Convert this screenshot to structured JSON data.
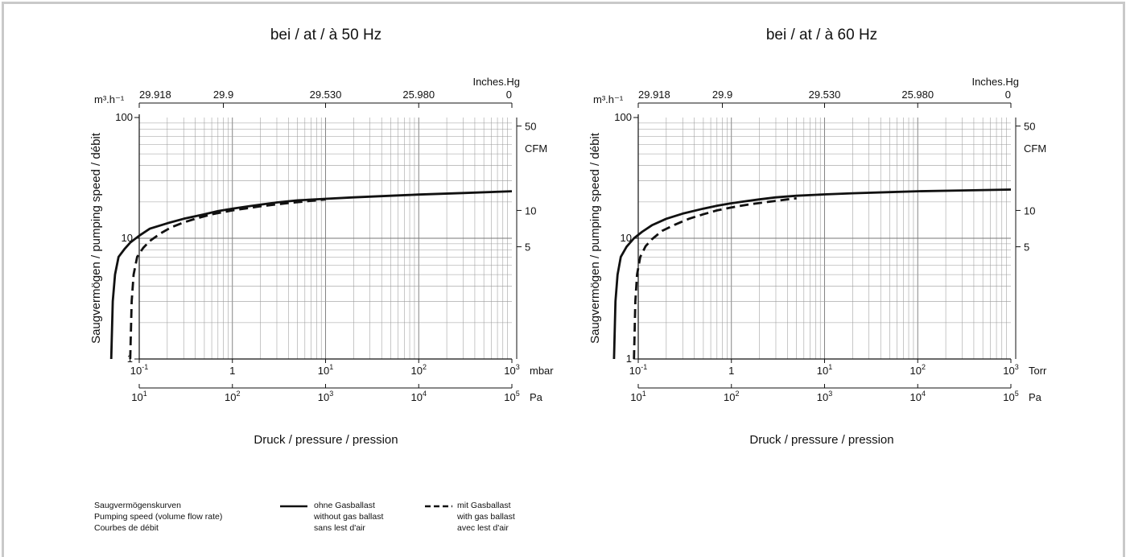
{
  "chart_data": [
    {
      "type": "line",
      "title": "bei / at / à 50 Hz",
      "ylabel": "Saugvermögen / pumping speed / débit",
      "xlabel": "Druck / pressure / pression",
      "x_scale": "log",
      "y_scale": "log",
      "xlim": [
        0.1,
        1000
      ],
      "ylim": [
        1,
        100
      ],
      "grid": true,
      "x_unit": "mbar",
      "y_unit": "m³.h⁻¹",
      "x_ticks": [
        "10",
        "1",
        "10",
        "10",
        "10"
      ],
      "x_tick_exp": [
        "-1",
        "",
        "1",
        "2",
        "3"
      ],
      "pa_ticks": [
        "10",
        "10",
        "10",
        "10",
        "10"
      ],
      "pa_tick_exp": [
        "1",
        "2",
        "3",
        "4",
        "5"
      ],
      "pa_unit": "Pa",
      "y_ticks": [
        "100",
        "10",
        "1"
      ],
      "top_unit": "Inches.Hg",
      "top_ticks": [
        "29.918",
        "29.9",
        "29.530",
        "25.980",
        "0"
      ],
      "right_unit": "CFM",
      "right_ticks": [
        "50",
        "10",
        "5"
      ],
      "series": [
        {
          "style": "solid",
          "x": [
            0.05,
            0.052,
            0.055,
            0.06,
            0.07,
            0.08,
            0.1,
            0.13,
            0.2,
            0.3,
            0.5,
            0.7,
            1,
            1.5,
            2,
            3,
            5,
            10,
            20,
            50,
            100,
            300,
            1000
          ],
          "y": [
            1,
            3,
            5,
            7,
            8.2,
            9.2,
            10.5,
            12,
            13.3,
            14.5,
            15.8,
            16.8,
            17.6,
            18.4,
            19,
            19.8,
            20.6,
            21.2,
            21.8,
            22.5,
            23,
            23.7,
            24.5
          ]
        },
        {
          "style": "dashed",
          "x": [
            0.08,
            0.083,
            0.087,
            0.095,
            0.11,
            0.13,
            0.17,
            0.22,
            0.3,
            0.4,
            0.6,
            1,
            2,
            4,
            8,
            10
          ],
          "y": [
            1,
            3,
            5,
            7,
            8.3,
            9.5,
            11,
            12.3,
            13.5,
            14.5,
            15.8,
            17,
            18.4,
            19.6,
            20.6,
            21
          ]
        }
      ]
    },
    {
      "type": "line",
      "title": "bei / at / à 60 Hz",
      "ylabel": "Saugvermögen / pumping speed / débit",
      "xlabel": "Druck / pressure / pression",
      "x_scale": "log",
      "y_scale": "log",
      "xlim": [
        0.1,
        1000
      ],
      "ylim": [
        1,
        100
      ],
      "grid": true,
      "x_unit": "Torr",
      "y_unit": "m³.h⁻¹",
      "x_ticks": [
        "10",
        "1",
        "10",
        "10",
        "10"
      ],
      "x_tick_exp": [
        "-1",
        "",
        "1",
        "2",
        "3"
      ],
      "pa_ticks": [
        "10",
        "10",
        "10",
        "10",
        "10"
      ],
      "pa_tick_exp": [
        "1",
        "2",
        "3",
        "4",
        "5"
      ],
      "pa_unit": "Pa",
      "y_ticks": [
        "100",
        "10",
        "1"
      ],
      "top_unit": "Inches.Hg",
      "top_ticks": [
        "29.918",
        "29.9",
        "29.530",
        "25.980",
        "0"
      ],
      "right_unit": "CFM",
      "right_ticks": [
        "50",
        "10",
        "5"
      ],
      "series": [
        {
          "style": "solid",
          "x": [
            0.055,
            0.057,
            0.06,
            0.065,
            0.075,
            0.09,
            0.11,
            0.14,
            0.2,
            0.3,
            0.5,
            0.7,
            1,
            1.5,
            2,
            3,
            5,
            10,
            20,
            50,
            100,
            300,
            1000
          ],
          "y": [
            1,
            3,
            5,
            7,
            8.5,
            10,
            11.3,
            12.8,
            14.5,
            16,
            17.6,
            18.6,
            19.5,
            20.4,
            21,
            21.8,
            22.5,
            23.1,
            23.6,
            24.1,
            24.5,
            24.9,
            25.3
          ]
        },
        {
          "style": "dashed",
          "x": [
            0.09,
            0.093,
            0.097,
            0.105,
            0.12,
            0.14,
            0.18,
            0.25,
            0.35,
            0.5,
            0.7,
            1,
            1.5,
            2,
            3,
            4,
            5
          ],
          "y": [
            1,
            3,
            5,
            7,
            8.6,
            9.8,
            11.5,
            13,
            14.5,
            15.8,
            17,
            18,
            19,
            19.6,
            20.4,
            21,
            21.4
          ]
        }
      ]
    }
  ],
  "legend": {
    "caption": [
      "Saugvermögenskurven",
      "Pumping speed (volume flow rate)",
      "Courbes de débit"
    ],
    "solid": [
      "ohne Gasballast",
      "without gas ballast",
      "sans lest d'air"
    ],
    "dashed": [
      "mit Gasballast",
      "with gas ballast",
      "avec lest d'air"
    ]
  }
}
